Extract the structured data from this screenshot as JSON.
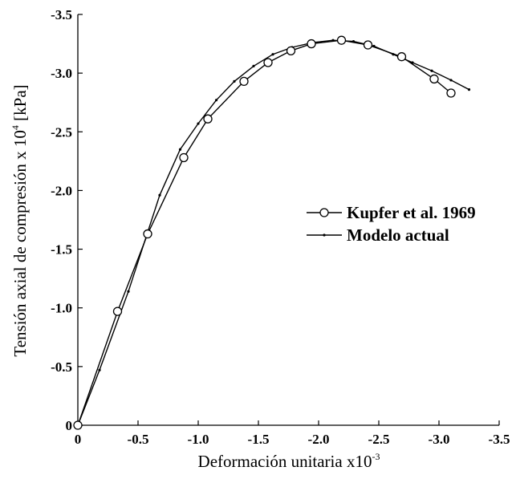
{
  "chart_data": {
    "type": "line",
    "title": "",
    "xlabel": "Deformación unitaria x10",
    "xlabel_sup": "-3",
    "ylabel": "Tensión axial de compresión  x 10",
    "ylabel_sup": "4",
    "ylabel_unit": " [kPa]",
    "xlim": [
      0,
      -3.5
    ],
    "ylim": [
      0,
      -3.5
    ],
    "x_ticks": [
      0,
      -0.5,
      -1.0,
      -1.5,
      -2.0,
      -2.5,
      -3.0,
      -3.5
    ],
    "x_tick_labels": [
      "0",
      "-0.5",
      "-1.0",
      "-1.5",
      "-2.0",
      "-2.5",
      "-3.0",
      "-3.5"
    ],
    "y_ticks": [
      0,
      -0.5,
      -1.0,
      -1.5,
      -2.0,
      -2.5,
      -3.0,
      -3.5
    ],
    "y_tick_labels": [
      "0",
      "-0.5",
      "-1.0",
      "-1.5",
      "-2.0",
      "-2.5",
      "-3.0",
      "-3.5"
    ],
    "grid": false,
    "legend_position": "center-right",
    "series": [
      {
        "name": "Kupfer et al. 1969",
        "marker": "circle",
        "x": [
          0,
          -0.33,
          -0.58,
          -0.88,
          -1.08,
          -1.38,
          -1.58,
          -1.77,
          -1.94,
          -2.19,
          -2.41,
          -2.69,
          -2.96,
          -3.1
        ],
        "y": [
          0,
          -0.97,
          -1.63,
          -2.28,
          -2.61,
          -2.93,
          -3.09,
          -3.19,
          -3.25,
          -3.28,
          -3.24,
          -3.14,
          -2.95,
          -2.83
        ]
      },
      {
        "name": "Modelo actual",
        "marker": "dot",
        "x": [
          0,
          -0.18,
          -0.42,
          -0.68,
          -0.85,
          -1.0,
          -1.15,
          -1.3,
          -1.46,
          -1.62,
          -1.78,
          -1.95,
          -2.12,
          -2.29,
          -2.46,
          -2.62,
          -2.78,
          -2.94,
          -3.1,
          -3.25
        ],
        "y": [
          0,
          -0.47,
          -1.14,
          -1.96,
          -2.35,
          -2.57,
          -2.77,
          -2.93,
          -3.06,
          -3.16,
          -3.22,
          -3.26,
          -3.28,
          -3.27,
          -3.23,
          -3.16,
          -3.09,
          -3.02,
          -2.94,
          -2.86
        ]
      }
    ]
  }
}
